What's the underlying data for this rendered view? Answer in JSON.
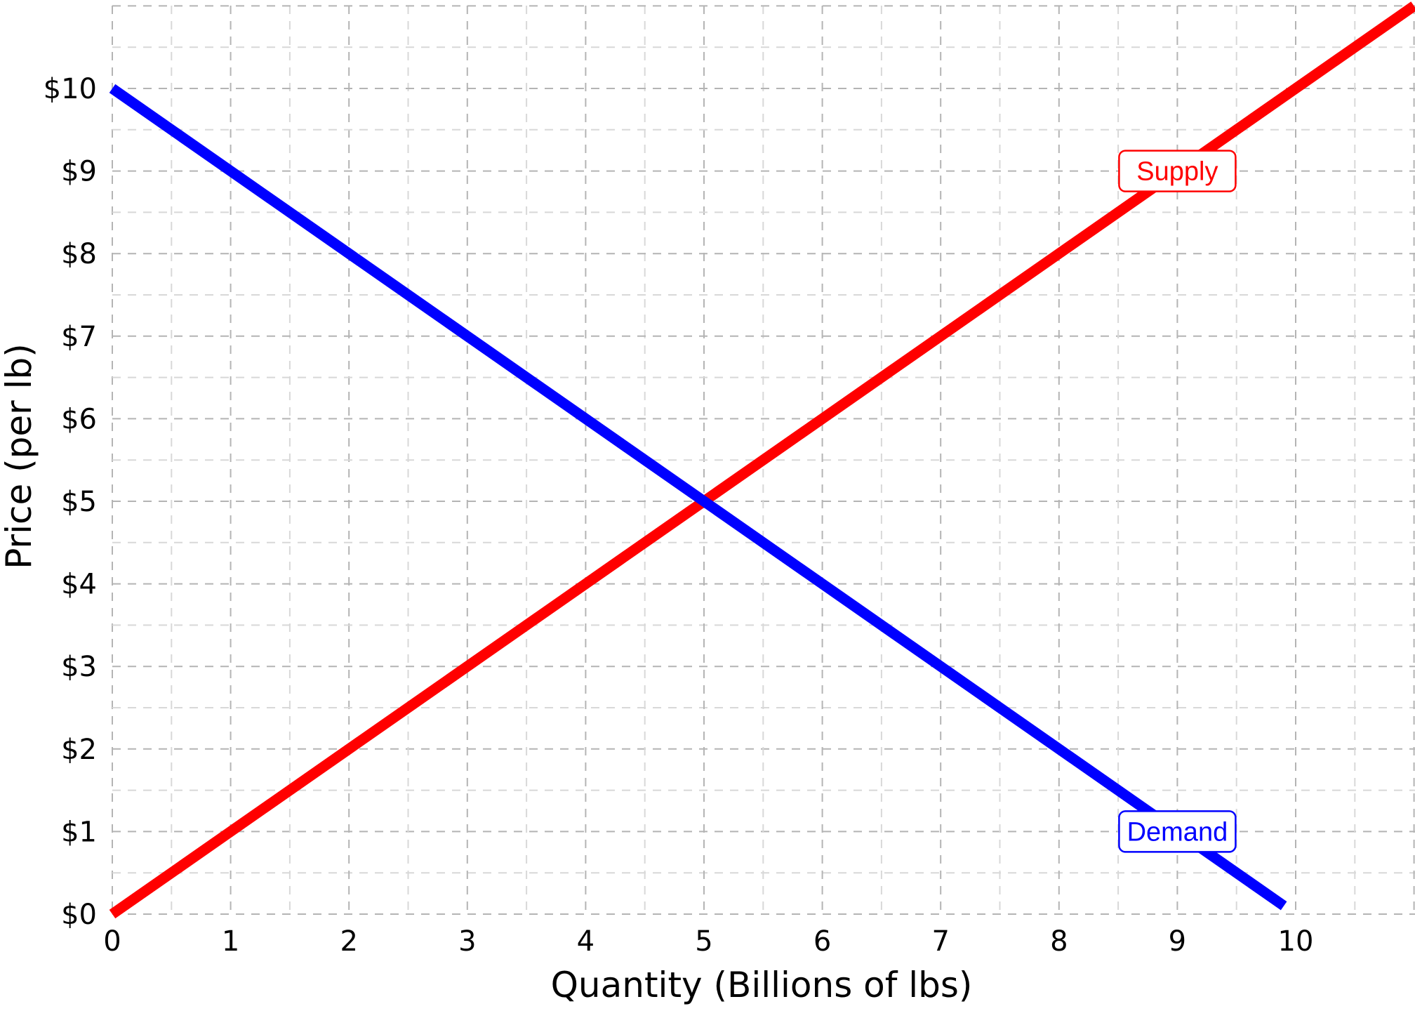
{
  "chart_data": {
    "type": "line",
    "xlabel": "Quantity (Billions of lbs)",
    "ylabel": "Price (per lb)",
    "xlim": [
      0,
      11
    ],
    "ylim": [
      0,
      11
    ],
    "x_ticks": [
      0,
      1,
      2,
      3,
      4,
      5,
      6,
      7,
      8,
      9,
      10
    ],
    "x_tick_labels": [
      "0",
      "1",
      "2",
      "3",
      "4",
      "5",
      "6",
      "7",
      "8",
      "9",
      "10"
    ],
    "y_ticks": [
      0,
      1,
      2,
      3,
      4,
      5,
      6,
      7,
      8,
      9,
      10
    ],
    "y_tick_labels": [
      "$0",
      "$1",
      "$2",
      "$3",
      "$4",
      "$5",
      "$6",
      "$7",
      "$8",
      "$9",
      "$10"
    ],
    "grid": true,
    "grid_style": "dashed",
    "legend": "none",
    "series": [
      {
        "name": "Supply",
        "color": "#ff0000",
        "x": [
          0,
          11
        ],
        "y": [
          0,
          11
        ],
        "label_at": {
          "x": 9,
          "y": 9
        }
      },
      {
        "name": "Demand",
        "color": "#0000ff",
        "x": [
          0,
          9.9
        ],
        "y": [
          10,
          0.1
        ],
        "label_at": {
          "x": 9,
          "y": 1
        }
      }
    ]
  }
}
